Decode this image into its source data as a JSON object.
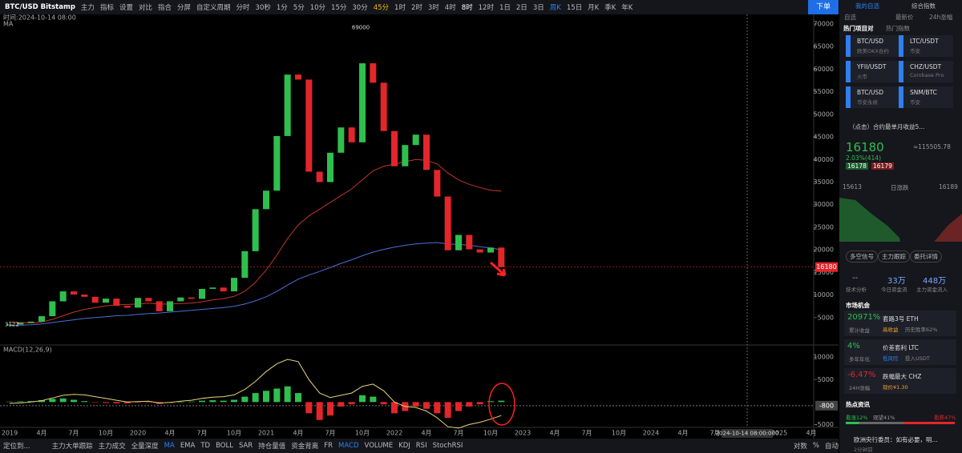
{
  "toolbar": {
    "symbol": "BTC/USD  Bitstamp",
    "items": [
      "主力",
      "指标",
      "设置",
      "对比",
      "指合",
      "分屏",
      "自定义周期",
      "分时",
      "30秒",
      "1分",
      "5分",
      "10分",
      "15分",
      "30分",
      "45分",
      "1时",
      "2时",
      "3时",
      "4时",
      "8时",
      "12时",
      "1日",
      "2日",
      "3日",
      "周K",
      "15日",
      "月K",
      "季K",
      "年K"
    ],
    "order": "下单"
  },
  "chart_info": {
    "time": "时间:2024-10-14 08:00",
    "ma": "MA",
    "macd": "MACD(12,26,9)"
  },
  "chart_data": {
    "type": "candlestick",
    "categories": [
      "2019",
      null,
      null,
      "4月",
      null,
      null,
      "7月",
      null,
      null,
      "10月",
      null,
      null,
      "2020",
      null,
      null,
      "4月",
      null,
      null,
      "7月",
      null,
      null,
      "10月",
      null,
      null,
      "2021",
      null,
      null,
      "4月",
      null,
      null,
      "7月",
      null,
      null,
      "10月",
      null,
      null,
      "2022",
      null,
      null,
      "4月",
      null,
      null,
      "7月",
      null,
      null,
      "10月",
      null,
      null,
      "2023",
      null,
      null,
      "4月",
      null,
      null,
      "7月",
      null,
      null,
      "10月",
      null,
      null,
      "2024",
      null,
      null,
      "4月",
      null,
      null,
      "7月",
      null,
      null,
      null,
      null,
      null,
      "2025",
      null,
      null,
      "4月"
    ],
    "close": [
      3450,
      3850,
      4100,
      5300,
      8600,
      10800,
      10100,
      9600,
      8300,
      9200,
      7600,
      7200,
      9350,
      8600,
      6400,
      8600,
      9450,
      9150,
      11350,
      11650,
      10800,
      13800,
      19700,
      29000,
      33100,
      45200,
      58800,
      57700,
      37300,
      35000,
      41500,
      47100,
      43800,
      61300,
      57000,
      46300,
      38500,
      43200,
      45500,
      37700,
      31800,
      19900,
      23300,
      20100,
      19400,
      20500,
      16180,
      null,
      null,
      null,
      null,
      null,
      null,
      null,
      null,
      null,
      null,
      null,
      null,
      null,
      null,
      null,
      null,
      null,
      null,
      null,
      null,
      null,
      null,
      null,
      null,
      null,
      null,
      null,
      null,
      null
    ],
    "up_color": "#2fbf4f",
    "down_color": "#e2262b",
    "ma_lines": [
      {
        "color": "#4a6fd6",
        "values": [
          3200,
          3300,
          3400,
          3600,
          3900,
          4200,
          4500,
          4800,
          5000,
          5200,
          5400,
          5500,
          5700,
          5900,
          6000,
          6200,
          6400,
          6600,
          6800,
          7000,
          7200,
          7500,
          8000,
          8700,
          9600,
          10800,
          12200,
          13500,
          14400,
          15200,
          16100,
          17000,
          17800,
          18700,
          19500,
          20100,
          20600,
          21000,
          21300,
          21500,
          21600,
          21300,
          21200,
          21000,
          20700,
          20400,
          20000,
          null,
          null,
          null,
          null,
          null,
          null,
          null,
          null,
          null,
          null,
          null,
          null,
          null,
          null,
          null,
          null,
          null,
          null,
          null,
          null,
          null,
          null,
          null,
          null,
          null,
          null,
          null,
          null,
          null
        ]
      },
      {
        "color": "#c0392b",
        "values": [
          4000,
          3900,
          3800,
          4000,
          4600,
          5400,
          6200,
          6800,
          7200,
          7600,
          7800,
          7900,
          8000,
          8200,
          8000,
          8000,
          8100,
          8200,
          8500,
          8900,
          9200,
          9700,
          10800,
          12800,
          15500,
          18800,
          22500,
          25500,
          27500,
          29000,
          30500,
          32000,
          33500,
          35500,
          37500,
          38500,
          39000,
          39500,
          40000,
          39800,
          39000,
          37000,
          35500,
          34500,
          33800,
          33200,
          33000,
          null,
          null,
          null,
          null,
          null,
          null,
          null,
          null,
          null,
          null,
          null,
          null,
          null,
          null,
          null,
          null,
          null,
          null,
          null,
          null,
          null,
          null,
          null,
          null,
          null,
          null,
          null,
          null,
          null
        ]
      }
    ],
    "ylim": [
      0,
      70000
    ],
    "yticks": [
      5000,
      10000,
      15000,
      20000,
      25000,
      30000,
      35000,
      40000,
      45000,
      50000,
      55000,
      60000,
      65000,
      70000
    ],
    "annotations": {
      "peak": "69000",
      "peak_value": 69000,
      "low": "3122",
      "low_value": 3122,
      "price": "16180",
      "price_value": 16180,
      "crosshair": "2024-10-14 08:00:000"
    },
    "macd": {
      "hist": [
        100,
        150,
        200,
        400,
        700,
        800,
        500,
        200,
        -100,
        -200,
        -300,
        -300,
        -100,
        -100,
        -400,
        -200,
        0,
        100,
        300,
        400,
        300,
        500,
        1200,
        2000,
        2500,
        3000,
        3500,
        2000,
        -2500,
        -4000,
        -3000,
        -1000,
        -500,
        1500,
        1200,
        -500,
        -2500,
        -2000,
        -1000,
        -1500,
        -2500,
        -3500,
        -2000,
        -1000,
        -500,
        200,
        300,
        null,
        null,
        null,
        null,
        null,
        null,
        null,
        null,
        null,
        null,
        null,
        null,
        null,
        null,
        null,
        null,
        null,
        null,
        null,
        null,
        null,
        null,
        null,
        null,
        null,
        null,
        null,
        null,
        null
      ],
      "line": {
        "color": "#e8d67a",
        "values": [
          -300,
          -200,
          0,
          300,
          900,
          1500,
          1700,
          1600,
          1200,
          800,
          400,
          0,
          100,
          200,
          -200,
          -100,
          200,
          400,
          800,
          1100,
          1200,
          1600,
          2800,
          4600,
          6800,
          8500,
          9500,
          9000,
          5000,
          2000,
          1000,
          1500,
          2000,
          3500,
          4000,
          2500,
          0,
          -1000,
          -1200,
          -2000,
          -3500,
          -5500,
          -5800,
          -5000,
          -4500,
          -3800,
          -3000,
          null,
          null,
          null,
          null,
          null,
          null,
          null,
          null,
          null,
          null,
          null,
          null,
          null,
          null,
          null,
          null,
          null,
          null,
          null,
          null,
          null,
          null,
          null,
          null,
          null,
          null,
          null,
          null,
          null
        ]
      },
      "ylim": [
        -6000,
        12000
      ],
      "yticks": [
        10000,
        5000,
        -5000
      ],
      "current": "-800",
      "current_value": -800
    }
  },
  "bottom_bar": {
    "locate": "定位到...",
    "items": [
      "主力大单跟踪",
      "主力成交",
      "全量深度",
      "MA",
      "EMA",
      "TD",
      "BOLL",
      "SAR",
      "持仓量值",
      "资金背离",
      "FR",
      "MACD",
      "VOLUME",
      "KDJ",
      "RSI",
      "StochRSI"
    ],
    "right": [
      "对数",
      "%",
      "自动"
    ]
  },
  "right_panel": {
    "tabs": [
      "我的自选",
      "综合指数"
    ],
    "cols": [
      "自选",
      "最新价",
      "24h涨幅"
    ],
    "hot": [
      "热门项目对",
      "热门指数"
    ],
    "pairs": [
      [
        "BTC/USD",
        "欧美OKX合约"
      ],
      [
        "LTC/USDT",
        "币安"
      ],
      [
        "YFII/USDT",
        "火币"
      ],
      [
        "CHZ/USDT",
        "Coinbase Pro"
      ],
      [
        "BTC/USD",
        "币安永续"
      ],
      [
        "SNM/BTC",
        "币安"
      ]
    ],
    "promo": "（点击）合约最单月收益5...",
    "price": "16180",
    "cny": "≈115505.78",
    "change": "2.03%(414)",
    "bid": "16178",
    "ask": "16179",
    "low": "15613",
    "mid": "日涨跌",
    "high": "16189",
    "buttons": [
      "多空信号",
      "主力跟踪",
      "委托详情"
    ],
    "stats": [
      [
        "--",
        "技术分析"
      ],
      [
        "33万",
        "今日资金流"
      ],
      [
        "448万",
        "主力资金流入"
      ]
    ],
    "market": "市场机会",
    "cards": [
      [
        "20971%",
        "累计收益",
        "套路3号 ETH",
        "高收益",
        "历史胜率62%"
      ],
      [
        "4%",
        "多年年化",
        "价差套利 LTC",
        "低风险",
        "投入USDT"
      ],
      [
        "-6.47%",
        "24H涨幅",
        "跌幅最大 CHZ",
        "现价¥1.30"
      ]
    ],
    "news": "热点资讯",
    "bull": "看涨12%",
    "wait": "观望41%",
    "bear": "看跌47%",
    "headline": "欧洲央行委员：如有必要，明...",
    "ago": "2分钟前"
  }
}
